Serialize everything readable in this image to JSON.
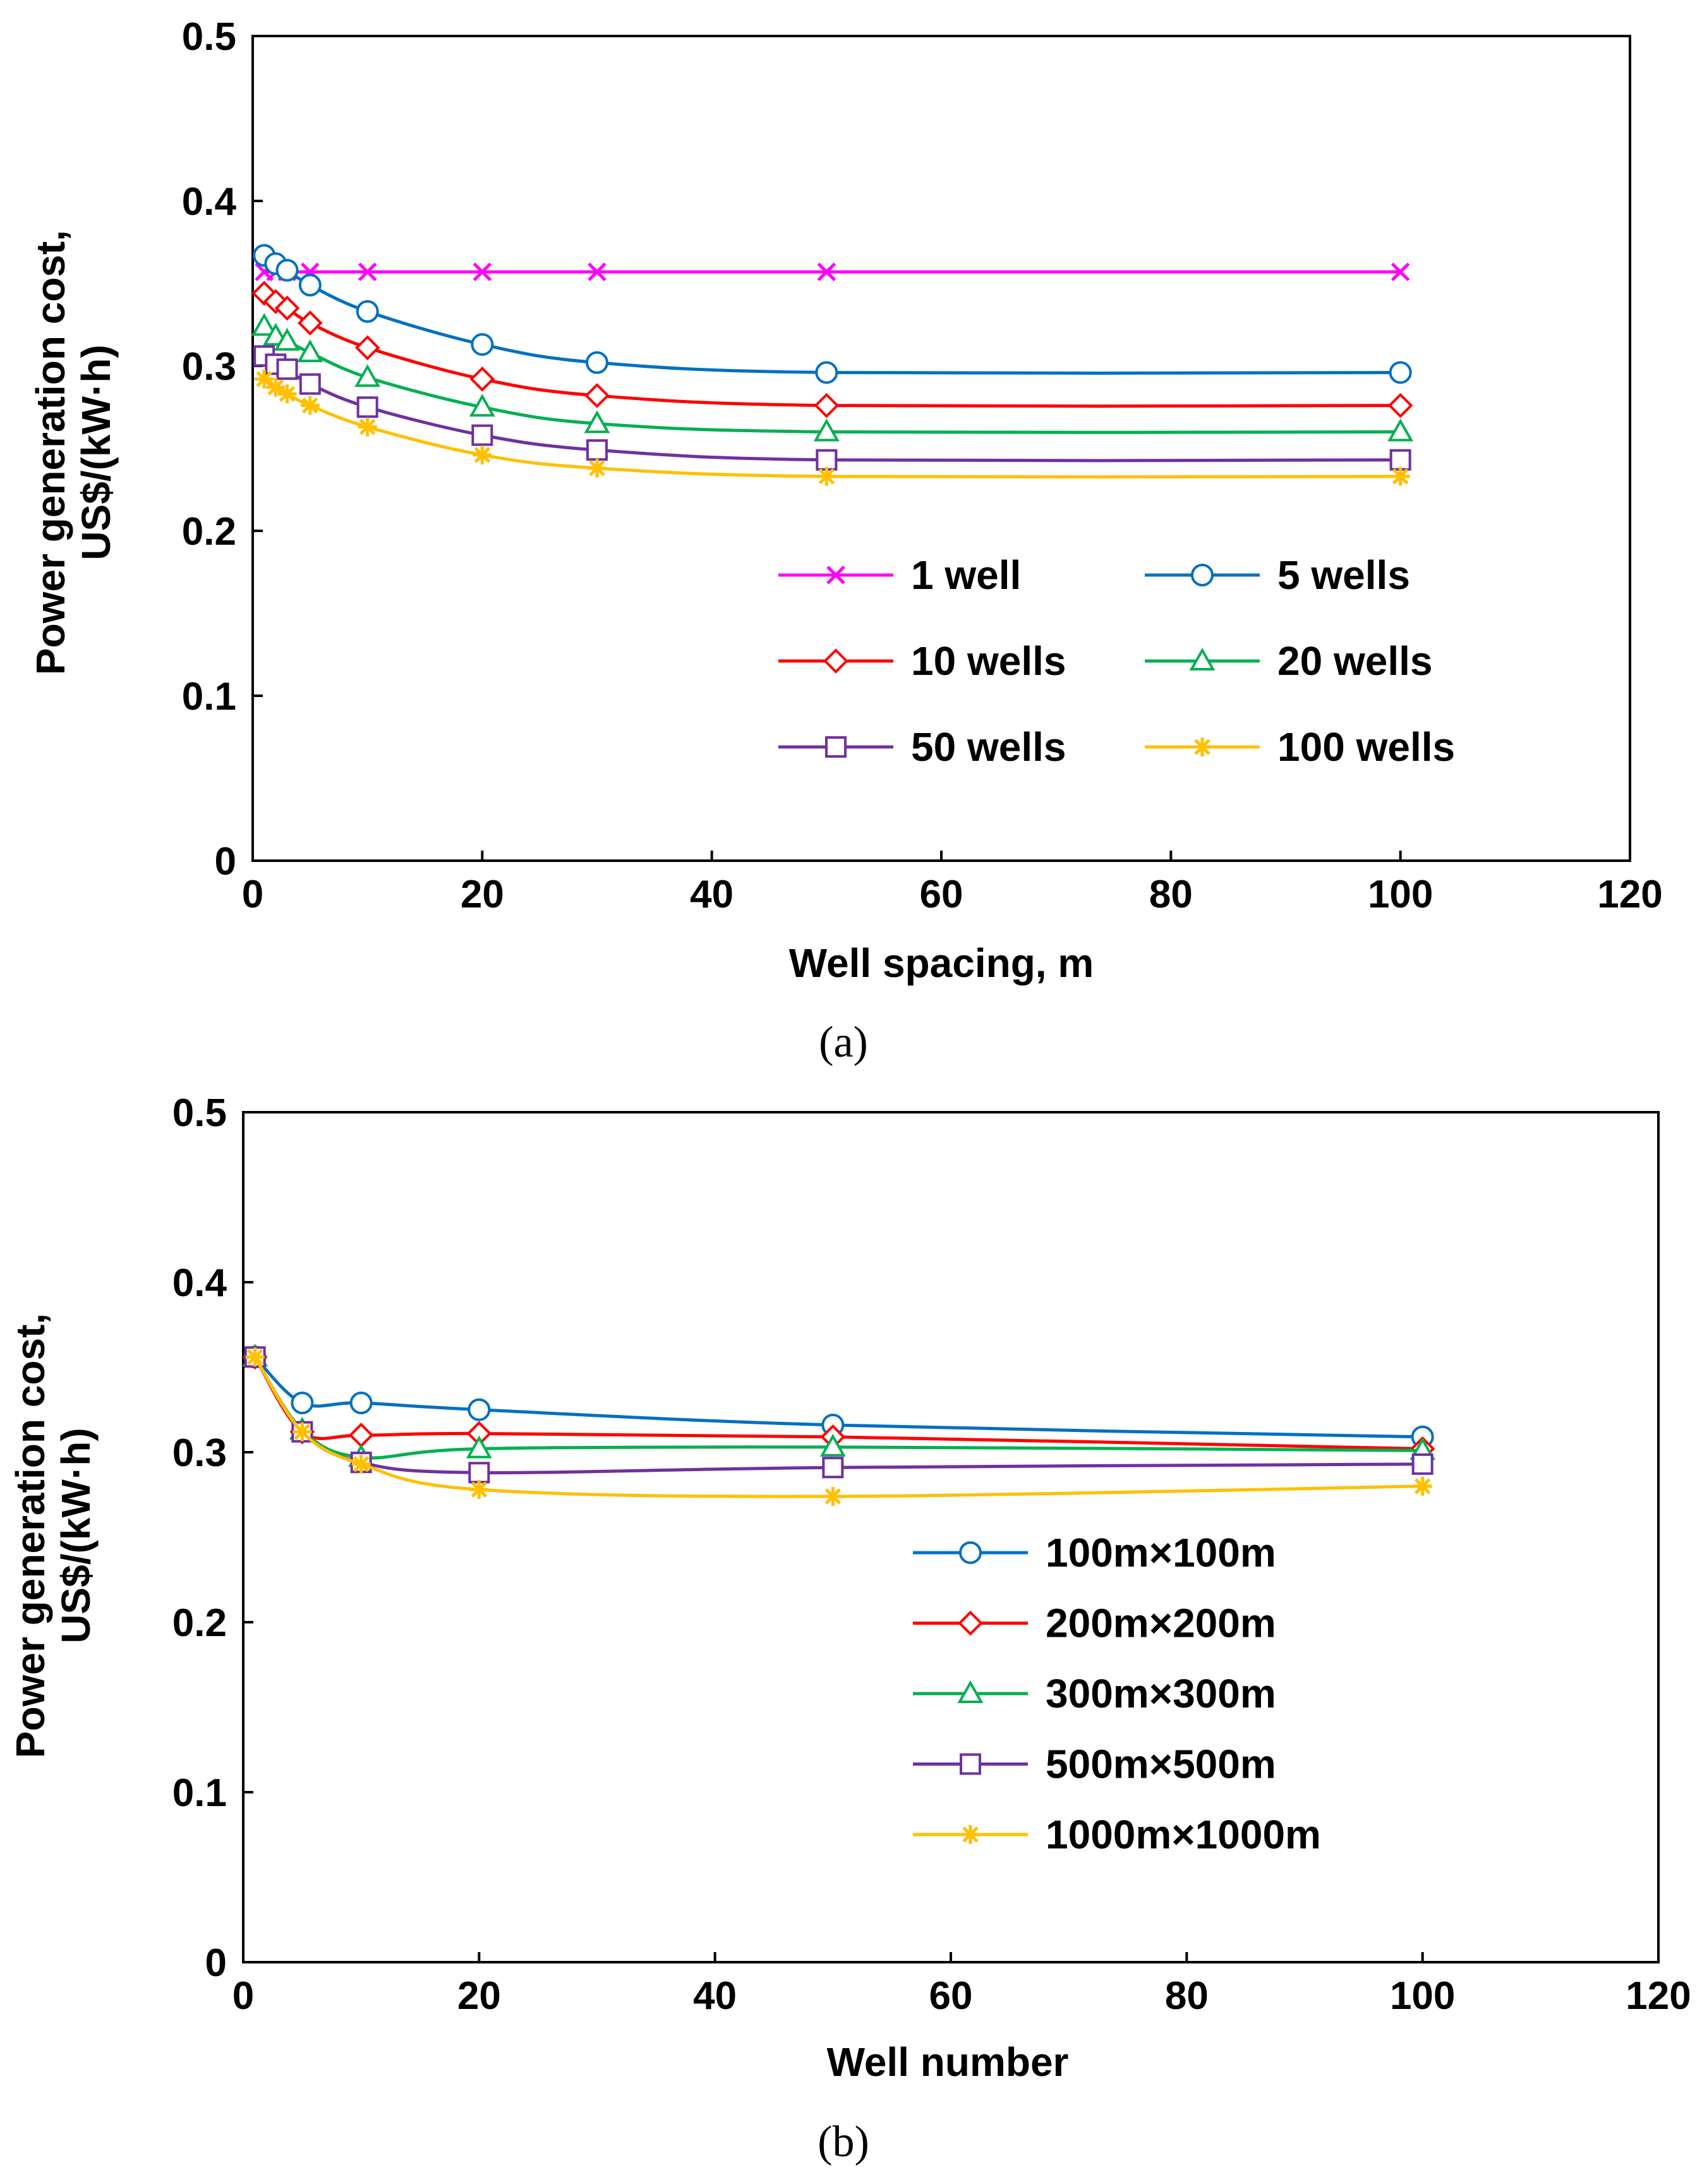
{
  "chart_data": [
    {
      "type": "line",
      "caption": "(a)",
      "xlabel": "Well spacing, m",
      "ylabel_line1": "Power generation cost,",
      "ylabel_line2": "US$/(kW·h)",
      "xlim": [
        0,
        120
      ],
      "ylim": [
        0,
        0.5
      ],
      "xticks": [
        0,
        20,
        40,
        60,
        80,
        100,
        120
      ],
      "yticks": [
        0,
        0.1,
        0.2,
        0.3,
        0.4,
        0.5
      ],
      "xtick_labels": [
        "0",
        "20",
        "40",
        "60",
        "80",
        "100",
        "120"
      ],
      "ytick_labels": [
        "0",
        "0.1",
        "0.2",
        "0.3",
        "0.4",
        "0.5"
      ],
      "grid": false,
      "legend_position": "center-right",
      "legend_columns": 2,
      "x": [
        1,
        2,
        3,
        5,
        10,
        20,
        30,
        50,
        100
      ],
      "series": [
        {
          "name": "1 well",
          "marker": "x",
          "color": "#ff00ff",
          "values": [
            0.357,
            0.357,
            0.357,
            0.357,
            0.357,
            0.357,
            0.357,
            0.357,
            0.357
          ]
        },
        {
          "name": "5 wells",
          "marker": "circle",
          "color": "#0070c0",
          "values": [
            0.367,
            0.362,
            0.358,
            0.349,
            0.333,
            0.313,
            0.302,
            0.296,
            0.296
          ]
        },
        {
          "name": "10 wells",
          "marker": "diamond",
          "color": "#ff0000",
          "values": [
            0.344,
            0.339,
            0.335,
            0.326,
            0.311,
            0.292,
            0.282,
            0.276,
            0.276
          ]
        },
        {
          "name": "20 wells",
          "marker": "triangle",
          "color": "#00b050",
          "values": [
            0.324,
            0.318,
            0.315,
            0.308,
            0.293,
            0.275,
            0.265,
            0.26,
            0.26
          ]
        },
        {
          "name": "50 wells",
          "marker": "square",
          "color": "#7030a0",
          "values": [
            0.306,
            0.301,
            0.298,
            0.289,
            0.275,
            0.258,
            0.249,
            0.243,
            0.243
          ]
        },
        {
          "name": "100 wells",
          "marker": "asterisk",
          "color": "#ffc000",
          "values": [
            0.292,
            0.287,
            0.283,
            0.276,
            0.263,
            0.246,
            0.238,
            0.233,
            0.233
          ]
        }
      ]
    },
    {
      "type": "line",
      "caption": "(b)",
      "xlabel": "Well number",
      "ylabel_line1": "Power generation cost,",
      "ylabel_line2": "US$/(kW·h)",
      "xlim": [
        0,
        120
      ],
      "ylim": [
        0,
        0.5
      ],
      "xticks": [
        0,
        20,
        40,
        60,
        80,
        100,
        120
      ],
      "yticks": [
        0,
        0.1,
        0.2,
        0.3,
        0.4,
        0.5
      ],
      "xtick_labels": [
        "0",
        "20",
        "40",
        "60",
        "80",
        "100",
        "120"
      ],
      "ytick_labels": [
        "0",
        "0.1",
        "0.2",
        "0.3",
        "0.4",
        "0.5"
      ],
      "grid": false,
      "legend_position": "center-right",
      "legend_columns": 1,
      "x": [
        1,
        5,
        10,
        20,
        50,
        100
      ],
      "series": [
        {
          "name": "100m×100m",
          "marker": "circle",
          "color": "#0070c0",
          "values": [
            0.356,
            0.329,
            0.329,
            0.325,
            0.316,
            0.309
          ]
        },
        {
          "name": "200m×200m",
          "marker": "diamond",
          "color": "#ff0000",
          "values": [
            0.356,
            0.312,
            0.31,
            0.311,
            0.309,
            0.302
          ]
        },
        {
          "name": "300m×300m",
          "marker": "triangle",
          "color": "#00b050",
          "values": [
            0.356,
            0.313,
            0.297,
            0.302,
            0.303,
            0.301
          ]
        },
        {
          "name": "500m×500m",
          "marker": "square",
          "color": "#7030a0",
          "values": [
            0.356,
            0.312,
            0.294,
            0.288,
            0.291,
            0.293
          ]
        },
        {
          "name": "1000m×1000m",
          "marker": "asterisk",
          "color": "#ffc000",
          "values": [
            0.356,
            0.312,
            0.293,
            0.278,
            0.274,
            0.28
          ]
        }
      ]
    }
  ]
}
